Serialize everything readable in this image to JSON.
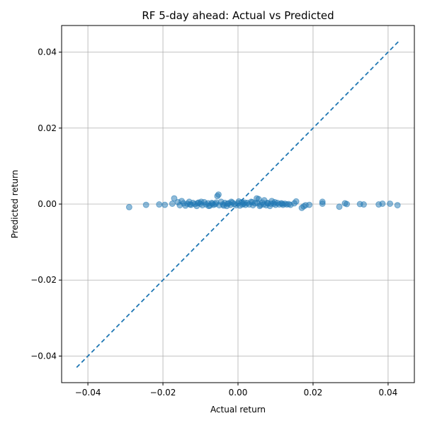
{
  "chart_data": {
    "type": "scatter",
    "title": "RF 5-day ahead: Actual vs Predicted",
    "xlabel": "Actual return",
    "ylabel": "Predicted return",
    "xlim": [
      -0.047,
      0.047
    ],
    "ylim": [
      -0.047,
      0.047
    ],
    "x_ticks": [
      -0.04,
      -0.02,
      0.0,
      0.02,
      0.04
    ],
    "x_tick_labels": [
      "−0.04",
      "−0.02",
      "0.00",
      "0.02",
      "0.04"
    ],
    "y_ticks": [
      -0.04,
      -0.02,
      0.0,
      0.02,
      0.04
    ],
    "y_tick_labels": [
      "−0.04",
      "−0.02",
      "0.00",
      "0.02",
      "0.04"
    ],
    "grid": true,
    "point_color": "#1f77b4",
    "line_color": "#1f77b4",
    "reference_line": {
      "style": "dashed",
      "x": [
        -0.043,
        0.043
      ],
      "y": [
        -0.043,
        0.043
      ]
    },
    "points": [
      [
        -0.029,
        -0.0008
      ],
      [
        -0.0245,
        -0.0002
      ],
      [
        -0.021,
        -0.0001
      ],
      [
        -0.0195,
        -0.0002
      ],
      [
        -0.0175,
        0.0001
      ],
      [
        -0.017,
        0.0015
      ],
      [
        -0.016,
        0.0005
      ],
      [
        -0.0155,
        -0.0003
      ],
      [
        -0.015,
        0.0008
      ],
      [
        -0.0145,
        0.0002
      ],
      [
        -0.014,
        -0.0004
      ],
      [
        -0.0135,
        0.0001
      ],
      [
        -0.013,
        0.0006
      ],
      [
        -0.0125,
        -0.0002
      ],
      [
        -0.012,
        0.0003
      ],
      [
        -0.0115,
        0.0
      ],
      [
        -0.011,
        -0.0005
      ],
      [
        -0.0105,
        0.0004
      ],
      [
        -0.01,
        0.0001
      ],
      [
        -0.0095,
        -0.0003
      ],
      [
        -0.009,
        0.0005
      ],
      [
        -0.0085,
        -0.0001
      ],
      [
        -0.008,
        0.0002
      ],
      [
        -0.0075,
        -0.0004
      ],
      [
        -0.007,
        0.0003
      ],
      [
        -0.0065,
        -0.0002
      ],
      [
        -0.006,
        0.0
      ],
      [
        -0.0055,
        0.0021
      ],
      [
        -0.0052,
        0.0025
      ],
      [
        -0.005,
        -0.0003
      ],
      [
        -0.0045,
        0.0006
      ],
      [
        -0.004,
        -0.0001
      ],
      [
        -0.0035,
        0.0003
      ],
      [
        -0.003,
        -0.0005
      ],
      [
        -0.0025,
        0.0002
      ],
      [
        -0.002,
        -0.0002
      ],
      [
        -0.0015,
        0.0004
      ],
      [
        -0.001,
        0.0
      ],
      [
        -0.0005,
        -0.0003
      ],
      [
        0.0,
        0.0002
      ],
      [
        0.0005,
        -0.0004
      ],
      [
        0.001,
        0.0005
      ],
      [
        0.0015,
        0.0001
      ],
      [
        0.002,
        -0.0002
      ],
      [
        0.0025,
        0.0003
      ],
      [
        0.003,
        -0.0001
      ],
      [
        0.0035,
        0.0006
      ],
      [
        0.004,
        -0.0003
      ],
      [
        0.0045,
        0.0002
      ],
      [
        0.005,
        0.0015
      ],
      [
        0.0055,
        0.0013
      ],
      [
        0.006,
        -0.0002
      ],
      [
        0.0065,
        0.0004
      ],
      [
        0.007,
        0.001
      ],
      [
        0.0075,
        -0.0003
      ],
      [
        0.008,
        0.0002
      ],
      [
        0.0085,
        -0.0005
      ],
      [
        0.009,
        0.0008
      ],
      [
        0.0095,
        0.0001
      ],
      [
        0.01,
        -0.0002
      ],
      [
        0.0105,
        0.0003
      ],
      [
        0.011,
        -0.0001
      ],
      [
        0.0115,
        0.0002
      ],
      [
        0.012,
        -0.0002
      ],
      [
        0.0125,
        0.0001
      ],
      [
        0.013,
        -0.0001
      ],
      [
        0.0135,
        0.0
      ],
      [
        0.014,
        -0.0002
      ],
      [
        0.015,
        0.0002
      ],
      [
        0.0155,
        0.0007
      ],
      [
        0.017,
        -0.001
      ],
      [
        0.0175,
        -0.0006
      ],
      [
        0.018,
        -0.0003
      ],
      [
        0.019,
        -0.0002
      ],
      [
        0.0225,
        0.0006
      ],
      [
        0.0225,
        0.0001
      ],
      [
        0.027,
        -0.0007
      ],
      [
        0.0285,
        0.0002
      ],
      [
        0.029,
        0.0
      ],
      [
        0.0325,
        0.0
      ],
      [
        0.0335,
        -0.0001
      ],
      [
        0.0375,
        -0.0001
      ],
      [
        0.0385,
        0.0001
      ],
      [
        0.0405,
        0.0001
      ],
      [
        0.0425,
        -0.0003
      ],
      [
        -0.0128,
        -0.0001
      ],
      [
        -0.0098,
        0.0006
      ],
      [
        -0.0078,
        -0.0005
      ],
      [
        -0.0058,
        0.0004
      ],
      [
        -0.0038,
        -0.0004
      ],
      [
        -0.0018,
        0.0006
      ],
      [
        0.0002,
        0.0007
      ],
      [
        0.0018,
        0.0004
      ],
      [
        0.0038,
        0.0005
      ],
      [
        0.0058,
        -0.0005
      ],
      [
        0.0078,
        0.0003
      ],
      [
        0.0098,
        0.0005
      ],
      [
        -0.0108,
        0.0002
      ],
      [
        -0.0068,
        0.0001
      ],
      [
        -0.0028,
        0.0001
      ],
      [
        0.0012,
        -0.0001
      ],
      [
        0.0052,
        0.0003
      ],
      [
        0.0068,
        -0.0001
      ],
      [
        0.0088,
        0.0001
      ],
      [
        0.0118,
        0.0001
      ]
    ]
  }
}
